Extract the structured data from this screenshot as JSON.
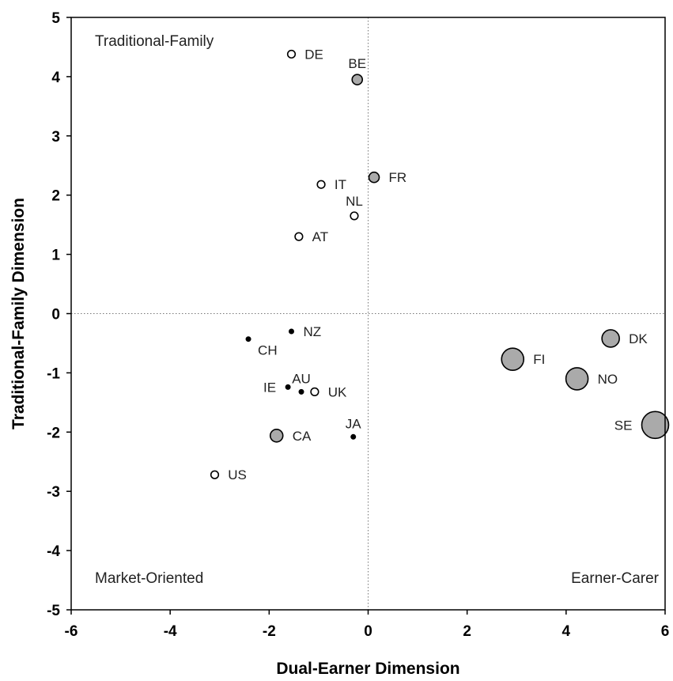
{
  "chart_data": {
    "type": "scatter",
    "xlabel": "Dual-Earner Dimension",
    "ylabel": "Traditional-Family Dimension",
    "xlim": [
      -6,
      6
    ],
    "ylim": [
      -5,
      5
    ],
    "x_ticks": [
      "-6",
      "-4",
      "-2",
      "0",
      "2",
      "4",
      "6"
    ],
    "y_ticks": [
      "5",
      "4",
      "3",
      "2",
      "1",
      "0",
      "-1",
      "-2",
      "-3",
      "-4",
      "-5"
    ],
    "grid": false,
    "reference_lines": {
      "x": 0,
      "y": 0,
      "style": "dotted"
    },
    "quadrant_labels": {
      "top_left": "Traditional-Family",
      "bottom_left": "Market-Oriented",
      "bottom_right": "Earner-Carer"
    },
    "marker_styles": {
      "open": "#ffffff",
      "filled_small": "#000000",
      "gray": "#aaaaaa"
    },
    "points": [
      {
        "label": "DE",
        "x": -1.55,
        "y": 4.38,
        "style": "open",
        "size": "small",
        "label_pos": "right"
      },
      {
        "label": "BE",
        "x": -0.22,
        "y": 3.95,
        "style": "gray",
        "size": "medium-small",
        "label_pos": "above"
      },
      {
        "label": "FR",
        "x": 0.12,
        "y": 2.3,
        "style": "gray",
        "size": "medium-small",
        "label_pos": "right"
      },
      {
        "label": "IT",
        "x": -0.95,
        "y": 2.18,
        "style": "open",
        "size": "small",
        "label_pos": "right"
      },
      {
        "label": "NL",
        "x": -0.28,
        "y": 1.65,
        "style": "open",
        "size": "small",
        "label_pos": "above"
      },
      {
        "label": "AT",
        "x": -1.4,
        "y": 1.3,
        "style": "open",
        "size": "small",
        "label_pos": "right"
      },
      {
        "label": "NZ",
        "x": -1.55,
        "y": -0.3,
        "style": "filled_small",
        "size": "tiny",
        "label_pos": "right"
      },
      {
        "label": "CH",
        "x": -2.42,
        "y": -0.43,
        "style": "filled_small",
        "size": "tiny",
        "label_pos": "below-right"
      },
      {
        "label": "IE",
        "x": -1.62,
        "y": -1.24,
        "style": "filled_small",
        "size": "tiny",
        "label_pos": "left"
      },
      {
        "label": "AU",
        "x": -1.35,
        "y": -1.32,
        "style": "filled_small",
        "size": "tiny",
        "label_pos": "above"
      },
      {
        "label": "UK",
        "x": -1.08,
        "y": -1.32,
        "style": "open",
        "size": "small",
        "label_pos": "right"
      },
      {
        "label": "JA",
        "x": -0.3,
        "y": -2.08,
        "style": "filled_small",
        "size": "tiny",
        "label_pos": "above"
      },
      {
        "label": "CA",
        "x": -1.85,
        "y": -2.06,
        "style": "gray",
        "size": "medium",
        "label_pos": "right"
      },
      {
        "label": "US",
        "x": -3.1,
        "y": -2.72,
        "style": "open",
        "size": "small",
        "label_pos": "right"
      },
      {
        "label": "DK",
        "x": 4.9,
        "y": -0.42,
        "style": "gray",
        "size": "medium-large",
        "label_pos": "right"
      },
      {
        "label": "FI",
        "x": 2.92,
        "y": -0.77,
        "style": "gray",
        "size": "large",
        "label_pos": "right"
      },
      {
        "label": "NO",
        "x": 4.22,
        "y": -1.1,
        "style": "gray",
        "size": "large",
        "label_pos": "right"
      },
      {
        "label": "SE",
        "x": 5.8,
        "y": -1.88,
        "style": "gray",
        "size": "xlarge",
        "label_pos": "left"
      }
    ]
  }
}
